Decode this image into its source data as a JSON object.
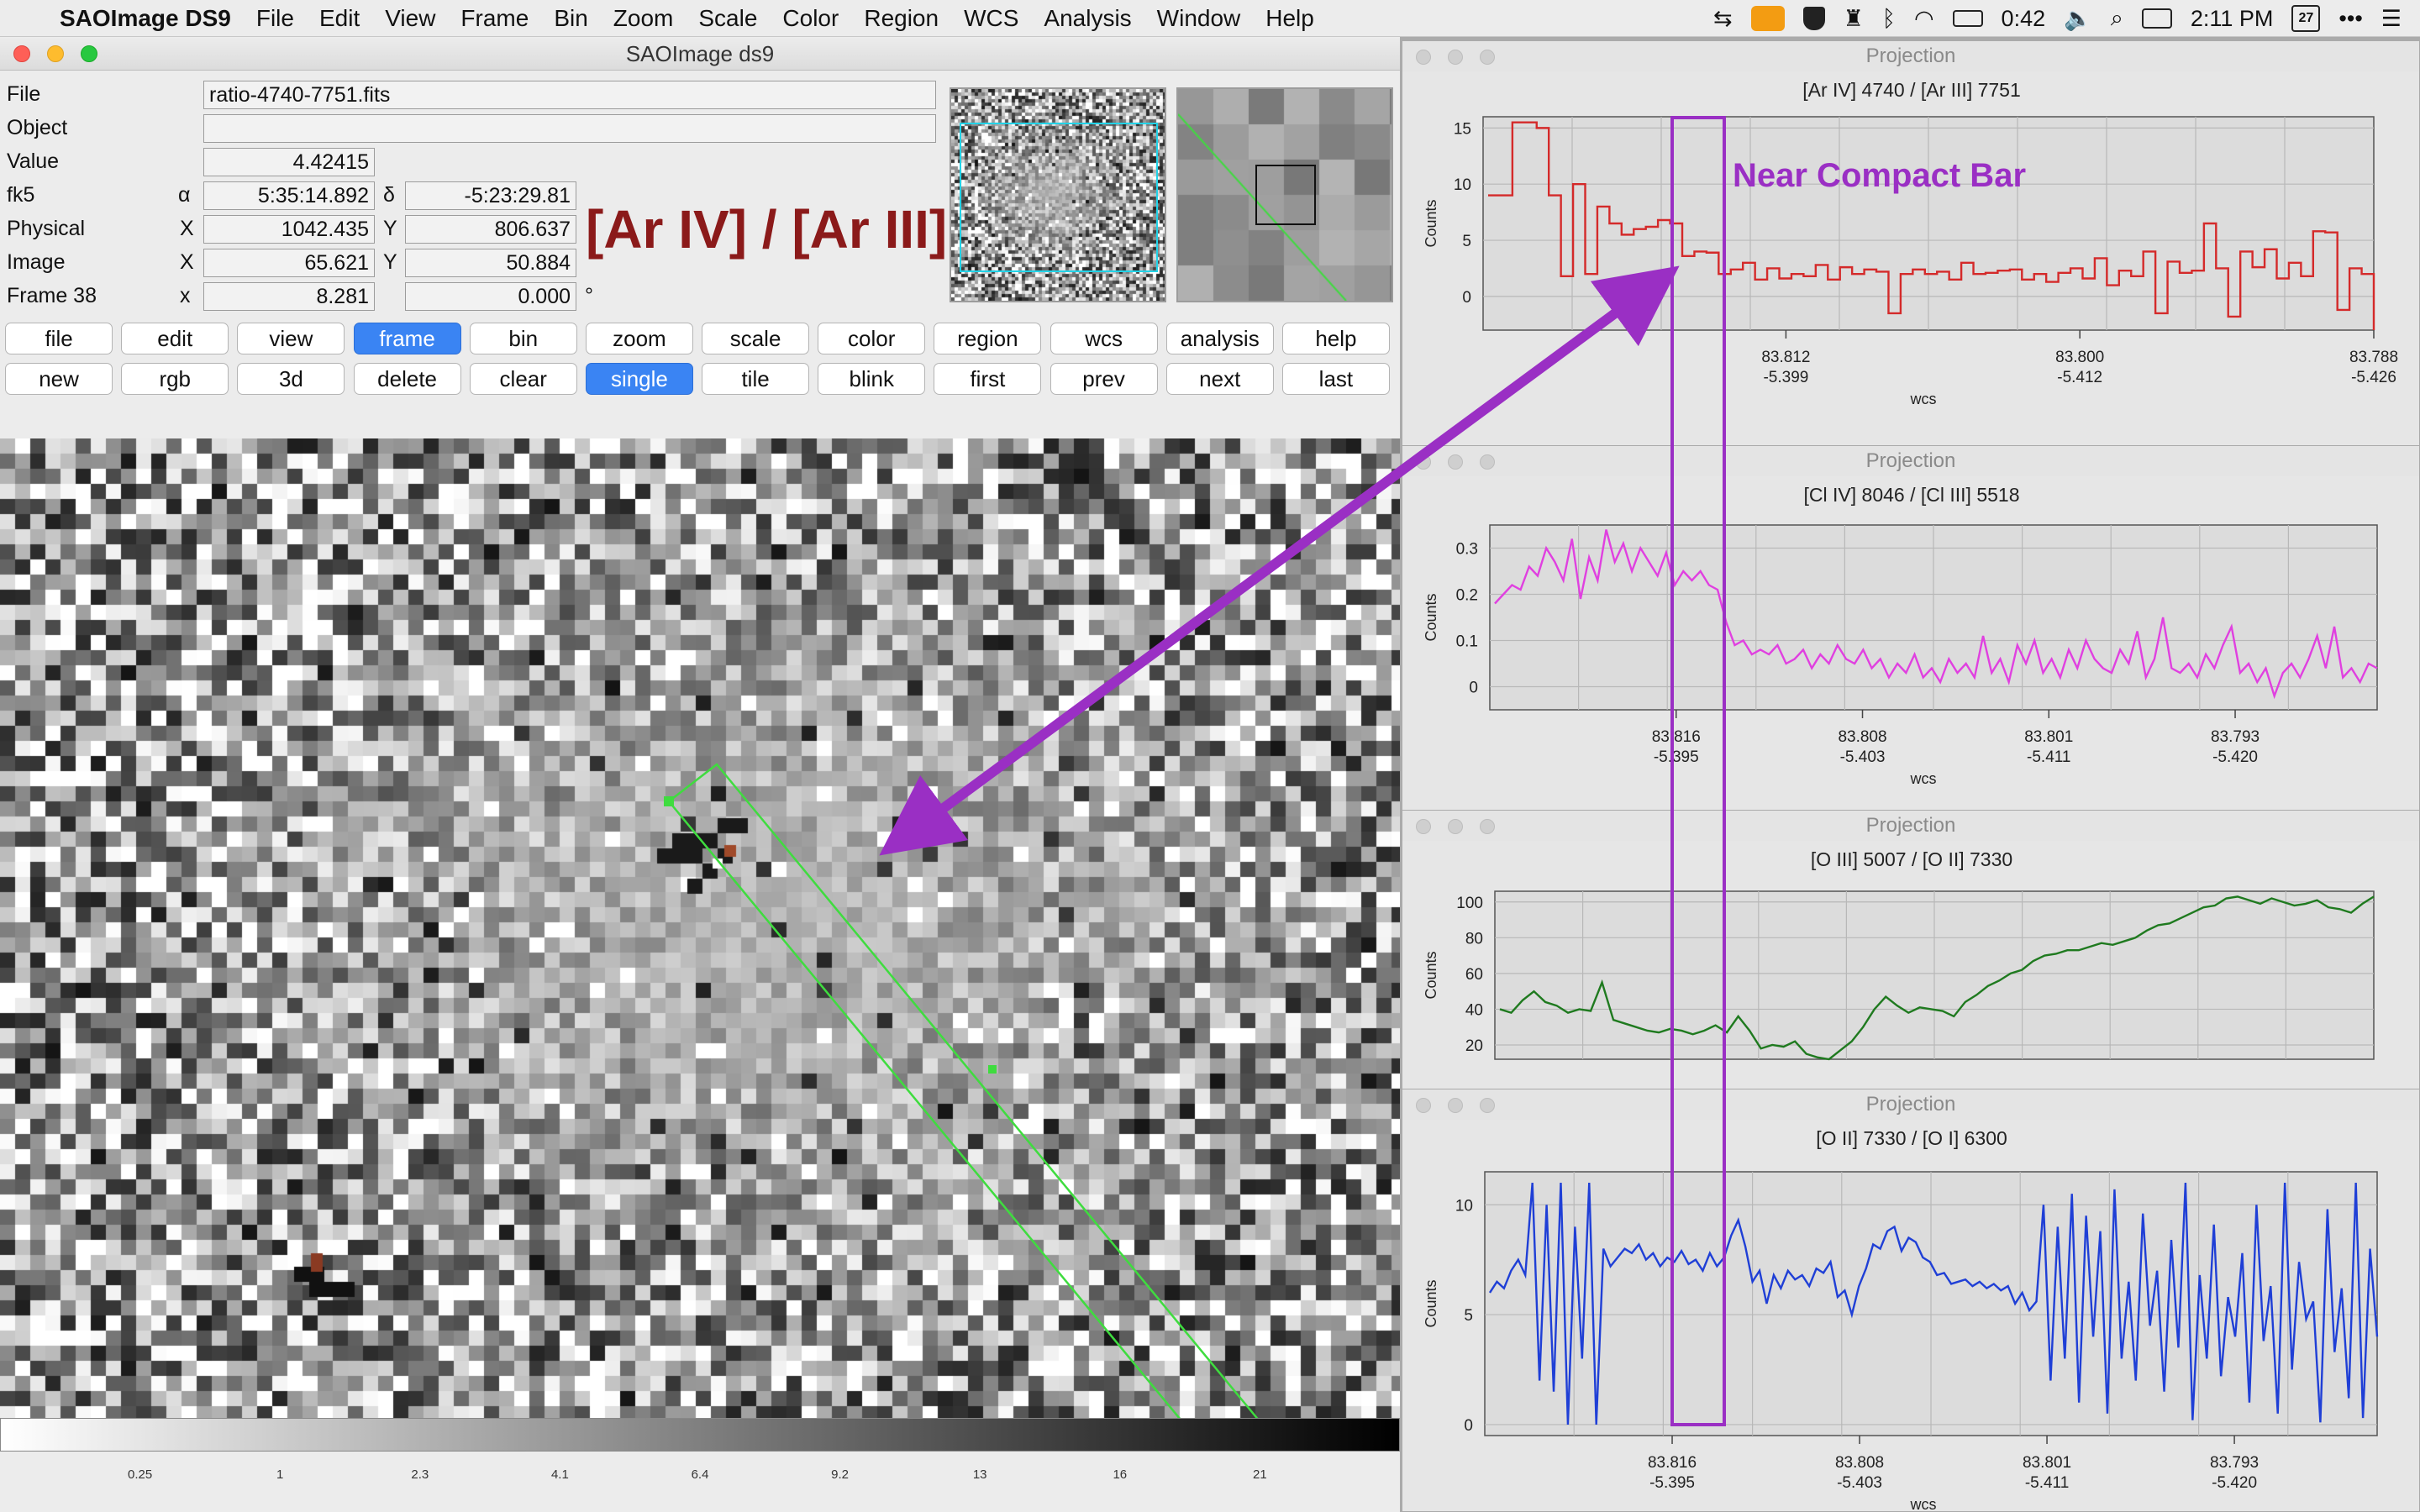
{
  "menubar": {
    "app_name": "SAOImage DS9",
    "items": [
      "File",
      "Edit",
      "View",
      "Frame",
      "Bin",
      "Zoom",
      "Scale",
      "Color",
      "Region",
      "WCS",
      "Analysis",
      "Window",
      "Help"
    ],
    "battery": "0:42",
    "clock": "2:11 PM",
    "calendar_day": "27"
  },
  "ds9": {
    "window_title": "SAOImage ds9",
    "info": {
      "file_label": "File",
      "file_value": "ratio-4740-7751.fits",
      "object_label": "Object",
      "object_value": "",
      "value_label": "Value",
      "value_value": "4.42415",
      "fk5_label": "fk5",
      "fk5_alpha_sym": "α",
      "fk5_alpha": "5:35:14.892",
      "fk5_delta_sym": "δ",
      "fk5_delta": "-5:23:29.81",
      "physical_label": "Physical",
      "physical_x_sym": "X",
      "physical_x": "1042.435",
      "physical_y_sym": "Y",
      "physical_y": "806.637",
      "image_label": "Image",
      "image_x_sym": "X",
      "image_x": "65.621",
      "image_y_sym": "Y",
      "image_y": "50.884",
      "frame_label": "Frame 38",
      "frame_x_sym": "x",
      "frame_x": "8.281",
      "frame_y": "0.000",
      "frame_unit": "°"
    },
    "ratio_label": "[Ar IV] / [Ar III]",
    "button_row_1": [
      "file",
      "edit",
      "view",
      "frame",
      "bin",
      "zoom",
      "scale",
      "color",
      "region",
      "wcs",
      "analysis",
      "help"
    ],
    "button_row_2": [
      "new",
      "rgb",
      "3d",
      "delete",
      "clear",
      "single",
      "tile",
      "blink",
      "first",
      "prev",
      "next",
      "last"
    ],
    "active_row_1": "frame",
    "active_row_2": "single",
    "colorbar_ticks": [
      "0.25",
      "1",
      "2.3",
      "4.1",
      "6.4",
      "9.2",
      "13",
      "16",
      "21"
    ]
  },
  "annotation": {
    "text": "Near Compact Bar",
    "color": "#9a2fc4"
  },
  "projections": [
    {
      "window_title": "Projection",
      "chart_data": {
        "type": "line",
        "title": "[Ar IV] 4740 / [Ar III] 7751",
        "ylabel": "Counts",
        "xlabel": "wcs",
        "color": "#d42a2a",
        "step": true,
        "ylim": [
          -3,
          16
        ],
        "yticks": [
          0,
          5,
          10,
          15
        ],
        "xticks": [
          {
            "ra": "83.812",
            "dec": "-5.399",
            "frac": 0.34
          },
          {
            "ra": "83.800",
            "dec": "-5.412",
            "frac": 0.67
          },
          {
            "ra": "83.788",
            "dec": "-5.426",
            "frac": 1.0
          }
        ],
        "values": [
          9,
          9,
          15.5,
          15.5,
          15,
          9,
          1.8,
          10,
          2,
          8,
          6.5,
          5.5,
          6,
          6.2,
          6.8,
          6.5,
          3.6,
          4,
          3.9,
          2,
          2.4,
          3,
          1.5,
          2.5,
          1.6,
          2,
          1.8,
          2.8,
          1.5,
          2.6,
          2,
          2.4,
          2.2,
          -1.5,
          2,
          2.4,
          2,
          2.2,
          1.5,
          3,
          2,
          2.1,
          2.3,
          2.4,
          1.5,
          2,
          1.3,
          2.1,
          2.5,
          1.6,
          3.4,
          1,
          2.3,
          1.8,
          4,
          -1.5,
          3.1,
          2.1,
          2.3,
          6.5,
          2.5,
          -1.8,
          4,
          2.6,
          4.2,
          1.6,
          3,
          1.8,
          5.8,
          5.7,
          -1.2,
          2.5,
          2,
          -3
        ]
      }
    },
    {
      "window_title": "Projection",
      "chart_data": {
        "type": "line",
        "title": "[Cl IV] 8046 / [Cl III] 5518",
        "ylabel": "Counts",
        "xlabel": "wcs",
        "color": "#e040e0",
        "ylim": [
          -0.05,
          0.35
        ],
        "yticks": [
          0,
          0.1,
          0.2,
          0.3
        ],
        "xticks": [
          {
            "ra": "83.816",
            "dec": "-5.395",
            "frac": 0.21
          },
          {
            "ra": "83.808",
            "dec": "-5.403",
            "frac": 0.42
          },
          {
            "ra": "83.801",
            "dec": "-5.411",
            "frac": 0.63
          },
          {
            "ra": "83.793",
            "dec": "-5.420",
            "frac": 0.84
          }
        ],
        "values": [
          0.18,
          0.2,
          0.22,
          0.21,
          0.26,
          0.24,
          0.3,
          0.27,
          0.23,
          0.32,
          0.19,
          0.28,
          0.23,
          0.34,
          0.27,
          0.31,
          0.25,
          0.3,
          0.27,
          0.24,
          0.29,
          0.22,
          0.25,
          0.23,
          0.25,
          0.22,
          0.21,
          0.14,
          0.09,
          0.1,
          0.07,
          0.08,
          0.07,
          0.09,
          0.05,
          0.06,
          0.08,
          0.04,
          0.07,
          0.05,
          0.09,
          0.06,
          0.05,
          0.08,
          0.04,
          0.06,
          0.02,
          0.05,
          0.03,
          0.07,
          0.02,
          0.04,
          0.01,
          0.06,
          0.03,
          0.05,
          0.02,
          0.11,
          0.03,
          0.06,
          0.01,
          0.09,
          0.05,
          0.1,
          0.03,
          0.06,
          0.02,
          0.08,
          0.04,
          0.1,
          0.06,
          0.04,
          0.03,
          0.08,
          0.05,
          0.12,
          0.02,
          0.06,
          0.15,
          0.04,
          0.03,
          0.05,
          0.02,
          0.07,
          0.04,
          0.09,
          0.13,
          0.03,
          0.05,
          0.01,
          0.04,
          -0.02,
          0.03,
          0.05,
          0.02,
          0.06,
          0.11,
          0.04,
          0.13,
          0.02,
          0.04,
          0.01,
          0.05,
          0.04
        ]
      }
    },
    {
      "window_title": "Projection",
      "chart_data": {
        "type": "line",
        "title": "[O III] 5007 / [O II] 7330",
        "ylabel": "Counts",
        "xlabel": "wcs",
        "color": "#1f7a1f",
        "ylim": [
          12,
          106
        ],
        "yticks": [
          20,
          40,
          60,
          80,
          100
        ],
        "xticks": [],
        "values": [
          40,
          38,
          45,
          50,
          44,
          42,
          38,
          40,
          39,
          55,
          34,
          32,
          30,
          28,
          27,
          29,
          28,
          26,
          28,
          31,
          27,
          36,
          28,
          18,
          20,
          19,
          22,
          15,
          13,
          12,
          17,
          22,
          30,
          40,
          47,
          42,
          38,
          41,
          40,
          39,
          36,
          44,
          48,
          53,
          56,
          60,
          62,
          67,
          70,
          71,
          73,
          73,
          75,
          77,
          76,
          78,
          80,
          84,
          87,
          88,
          91,
          94,
          97,
          98,
          102,
          103,
          101,
          99,
          102,
          100,
          98,
          99,
          101,
          97,
          96,
          94,
          99,
          103
        ]
      }
    },
    {
      "window_title": "Projection",
      "chart_data": {
        "type": "line",
        "title": "[O II] 7330 / [O I] 6300",
        "ylabel": "Counts",
        "xlabel": "wcs",
        "color": "#1f3fd6",
        "ylim": [
          -0.5,
          11.5
        ],
        "yticks": [
          0,
          5,
          10
        ],
        "xticks": [
          {
            "ra": "83.816",
            "dec": "-5.395",
            "frac": 0.21
          },
          {
            "ra": "83.808",
            "dec": "-5.403",
            "frac": 0.42
          },
          {
            "ra": "83.801",
            "dec": "-5.411",
            "frac": 0.63
          },
          {
            "ra": "83.793",
            "dec": "-5.420",
            "frac": 0.84
          }
        ],
        "values": [
          6,
          6.5,
          6.2,
          7,
          7.5,
          6.8,
          11,
          2,
          10,
          1.5,
          11,
          0,
          9,
          3,
          11,
          0,
          8,
          7.2,
          7.6,
          8,
          7.8,
          8.2,
          7.5,
          7.8,
          7.2,
          7.6,
          7.4,
          7.9,
          7.3,
          7.5,
          7,
          7.8,
          7.2,
          7.6,
          8.6,
          9.3,
          8.1,
          6.5,
          7,
          5.5,
          6.8,
          6.2,
          7,
          6.6,
          6.8,
          6.3,
          7.1,
          6.9,
          7.4,
          5.8,
          6.1,
          5,
          6.3,
          7.1,
          8.2,
          8,
          8.8,
          9,
          7.9,
          8.5,
          8.3,
          7.6,
          7.4,
          6.8,
          6.9,
          6.4,
          6.5,
          6.6,
          6.3,
          6.5,
          6.2,
          6.4,
          6.1,
          6.3,
          5.5,
          6,
          5.2,
          5.6,
          10,
          2,
          9,
          3,
          10.5,
          1,
          9.5,
          4,
          8.8,
          0.5,
          10.7,
          3,
          6.5,
          2,
          9.6,
          4.5,
          7,
          1.5,
          8.4,
          3.5,
          11,
          0.2,
          6.8,
          3,
          9.1,
          2.2,
          5.8,
          4,
          7.8,
          1,
          10,
          3.8,
          6.3,
          0.5,
          11,
          2.5,
          7.4,
          4.8,
          5.6,
          0.1,
          9.8,
          3.3,
          6.2,
          1.2,
          11,
          0.3,
          8,
          4
        ]
      }
    }
  ]
}
